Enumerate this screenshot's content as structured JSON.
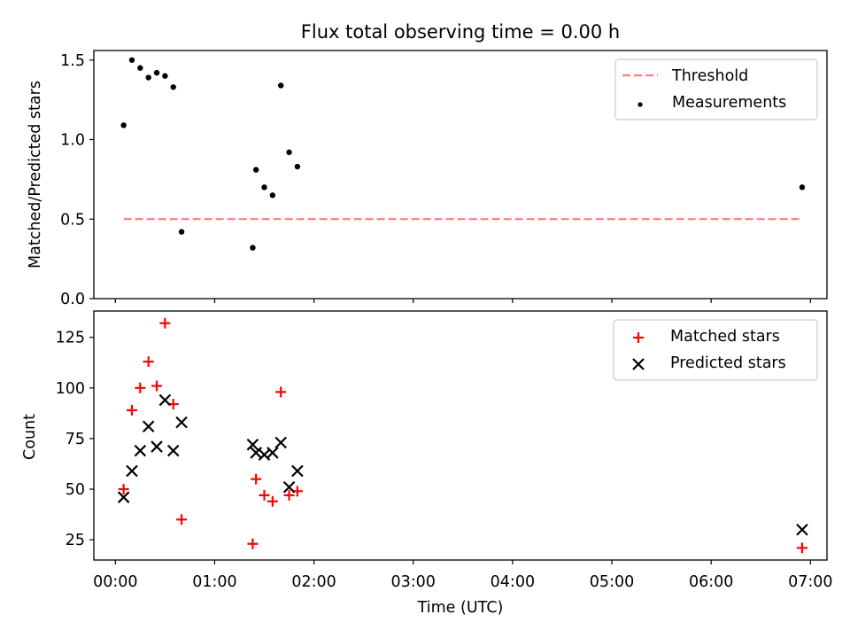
{
  "chart_data": [
    {
      "type": "scatter",
      "title": "Flux total observing time = 0.00 h",
      "xlabel": "",
      "ylabel": "Matched/Predicted stars",
      "xlim": [
        "23:47",
        "07:10"
      ],
      "ylim": [
        0,
        1.56
      ],
      "yticks": [
        "0.0",
        "0.5",
        "1.0",
        "1.5"
      ],
      "grid": false,
      "legend_position": "top-right",
      "threshold": {
        "name": "Threshold",
        "color": "#ff7f7f",
        "style": "dashed",
        "y": 0.5,
        "x_start": "00:05",
        "x_end": "06:55"
      },
      "series": [
        {
          "name": "Measurements",
          "marker": "dot",
          "color": "#000000",
          "points": [
            {
              "x": "00:05",
              "y": 1.09
            },
            {
              "x": "00:10",
              "y": 1.5
            },
            {
              "x": "00:15",
              "y": 1.45
            },
            {
              "x": "00:20",
              "y": 1.39
            },
            {
              "x": "00:25",
              "y": 1.42
            },
            {
              "x": "00:30",
              "y": 1.4
            },
            {
              "x": "00:35",
              "y": 1.33
            },
            {
              "x": "00:40",
              "y": 0.42
            },
            {
              "x": "01:23",
              "y": 0.32
            },
            {
              "x": "01:25",
              "y": 0.81
            },
            {
              "x": "01:30",
              "y": 0.7
            },
            {
              "x": "01:35",
              "y": 0.65
            },
            {
              "x": "01:40",
              "y": 1.34
            },
            {
              "x": "01:45",
              "y": 0.92
            },
            {
              "x": "01:50",
              "y": 0.83
            },
            {
              "x": "06:55",
              "y": 0.7
            }
          ]
        }
      ]
    },
    {
      "type": "scatter",
      "title": "",
      "xlabel": "Time (UTC)",
      "ylabel": "Count",
      "xlim": [
        "23:47",
        "07:10"
      ],
      "ylim": [
        15,
        138
      ],
      "yticks": [
        "25",
        "50",
        "75",
        "100",
        "125"
      ],
      "xticks": [
        "00:00",
        "01:00",
        "02:00",
        "03:00",
        "04:00",
        "05:00",
        "06:00",
        "07:00"
      ],
      "grid": false,
      "legend_position": "top-right",
      "series": [
        {
          "name": "Matched stars",
          "marker": "plus",
          "color": "#ff0000",
          "points": [
            {
              "x": "00:05",
              "y": 50
            },
            {
              "x": "00:10",
              "y": 89
            },
            {
              "x": "00:15",
              "y": 100
            },
            {
              "x": "00:20",
              "y": 113
            },
            {
              "x": "00:25",
              "y": 101
            },
            {
              "x": "00:30",
              "y": 132
            },
            {
              "x": "00:35",
              "y": 92
            },
            {
              "x": "00:40",
              "y": 35
            },
            {
              "x": "01:23",
              "y": 23
            },
            {
              "x": "01:25",
              "y": 55
            },
            {
              "x": "01:30",
              "y": 47
            },
            {
              "x": "01:35",
              "y": 44
            },
            {
              "x": "01:40",
              "y": 98
            },
            {
              "x": "01:45",
              "y": 47
            },
            {
              "x": "01:50",
              "y": 49
            },
            {
              "x": "06:55",
              "y": 21
            }
          ]
        },
        {
          "name": "Predicted stars",
          "marker": "x",
          "color": "#000000",
          "points": [
            {
              "x": "00:05",
              "y": 46
            },
            {
              "x": "00:10",
              "y": 59
            },
            {
              "x": "00:15",
              "y": 69
            },
            {
              "x": "00:20",
              "y": 81
            },
            {
              "x": "00:25",
              "y": 71
            },
            {
              "x": "00:30",
              "y": 94
            },
            {
              "x": "00:35",
              "y": 69
            },
            {
              "x": "00:40",
              "y": 83
            },
            {
              "x": "01:23",
              "y": 72
            },
            {
              "x": "01:25",
              "y": 68
            },
            {
              "x": "01:30",
              "y": 67
            },
            {
              "x": "01:35",
              "y": 68
            },
            {
              "x": "01:40",
              "y": 73
            },
            {
              "x": "01:45",
              "y": 51
            },
            {
              "x": "01:50",
              "y": 59
            },
            {
              "x": "06:55",
              "y": 30
            }
          ]
        }
      ]
    }
  ]
}
